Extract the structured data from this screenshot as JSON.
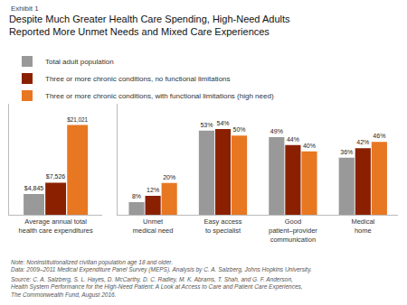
{
  "chart_data": [
    {
      "type": "bar",
      "title": "Despite Much Greater Health Care Spending, High-Need Adults\nReported More Unmet Needs and Mixed Care Experiences",
      "annotations": [
        "Exhibit 1",
        "Note: Noninstitutionalized civilian population age 18 and older.\nData: 2009–2011 Medical Expenditure Panel Survey (MEPS). Analysis by C. A. Salzberg, Johns Hopkins University.",
        "Source: C. A. Salzberg, S. L. Hayes, D. McCarthy, D. C. Radley, M. K. Abrams, T. Shah, and G. F. Anderson,\nHealth System Performance for the High-Need Patient: A Look at Access to Care and Patient Care Experiences,\nThe Commonwealth Fund, August 2016."
      ],
      "categories": [
        "Average annual total\nhealth care expenditures"
      ],
      "series": [
        {
          "name": "Total adult population",
          "color": "#999999",
          "values": [
            4845
          ],
          "value_labels": [
            "$4,845"
          ]
        },
        {
          "name": "Three or more chronic conditions, no functional limitations",
          "color": "#8B2000",
          "values": [
            7526
          ],
          "value_labels": [
            "$7,526"
          ]
        },
        {
          "name": "Three or more chronic conditions, with functional limitations (high need)",
          "color": "#E87722",
          "values": [
            21021
          ],
          "value_labels": [
            "$21,021"
          ]
        }
      ],
      "ylim": [
        0,
        26000
      ],
      "yticks": [],
      "grid": false,
      "legend": "top",
      "data_labels": true,
      "tick_labels": "x"
    },
    {
      "type": "bar",
      "categories": [
        "Unmet\nmedical need",
        "Easy access\nto specialist",
        "Good\npatient–provider\ncommunication",
        "Medical\nhome"
      ],
      "series": [
        {
          "name": "Total adult population",
          "color": "#999999",
          "values": [
            8,
            53,
            49,
            36
          ],
          "value_labels": [
            "8%",
            "53%",
            "49%",
            "36%"
          ]
        },
        {
          "name": "Three or more chronic conditions, no functional limitations",
          "color": "#8B2000",
          "values": [
            12,
            54,
            44,
            42
          ],
          "value_labels": [
            "12%",
            "54%",
            "44%",
            "42%"
          ]
        },
        {
          "name": "Three or more chronic conditions, with functional limitations (high need)",
          "color": "#E87722",
          "values": [
            20,
            50,
            40,
            46
          ],
          "value_labels": [
            "20%",
            "50%",
            "40%",
            "46%"
          ]
        }
      ],
      "ylim": [
        0,
        70
      ],
      "yticks": [],
      "grid": false,
      "data_labels": true,
      "tick_labels": "x"
    }
  ]
}
